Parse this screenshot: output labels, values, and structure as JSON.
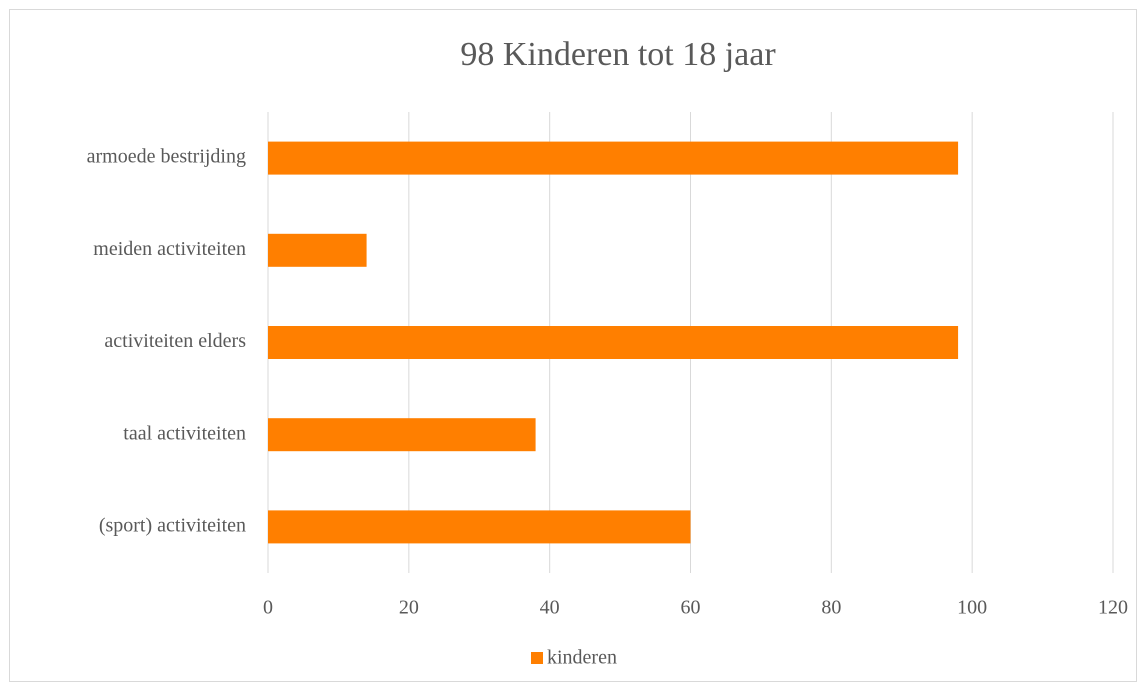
{
  "chart_data": {
    "type": "bar",
    "orientation": "horizontal",
    "title": "98 Kinderen tot 18 jaar",
    "categories": [
      "armoede bestrijding",
      "meiden activiteiten",
      "activiteiten elders",
      "taal activiteiten",
      "(sport) activiteiten"
    ],
    "series": [
      {
        "name": "kinderen",
        "color": "#ff7f00",
        "values": [
          98,
          14,
          98,
          38,
          60
        ]
      }
    ],
    "xlim": [
      0,
      120
    ],
    "xticks": [
      0,
      20,
      40,
      60,
      80,
      100,
      120
    ],
    "grid": true,
    "legend": "bottom"
  }
}
